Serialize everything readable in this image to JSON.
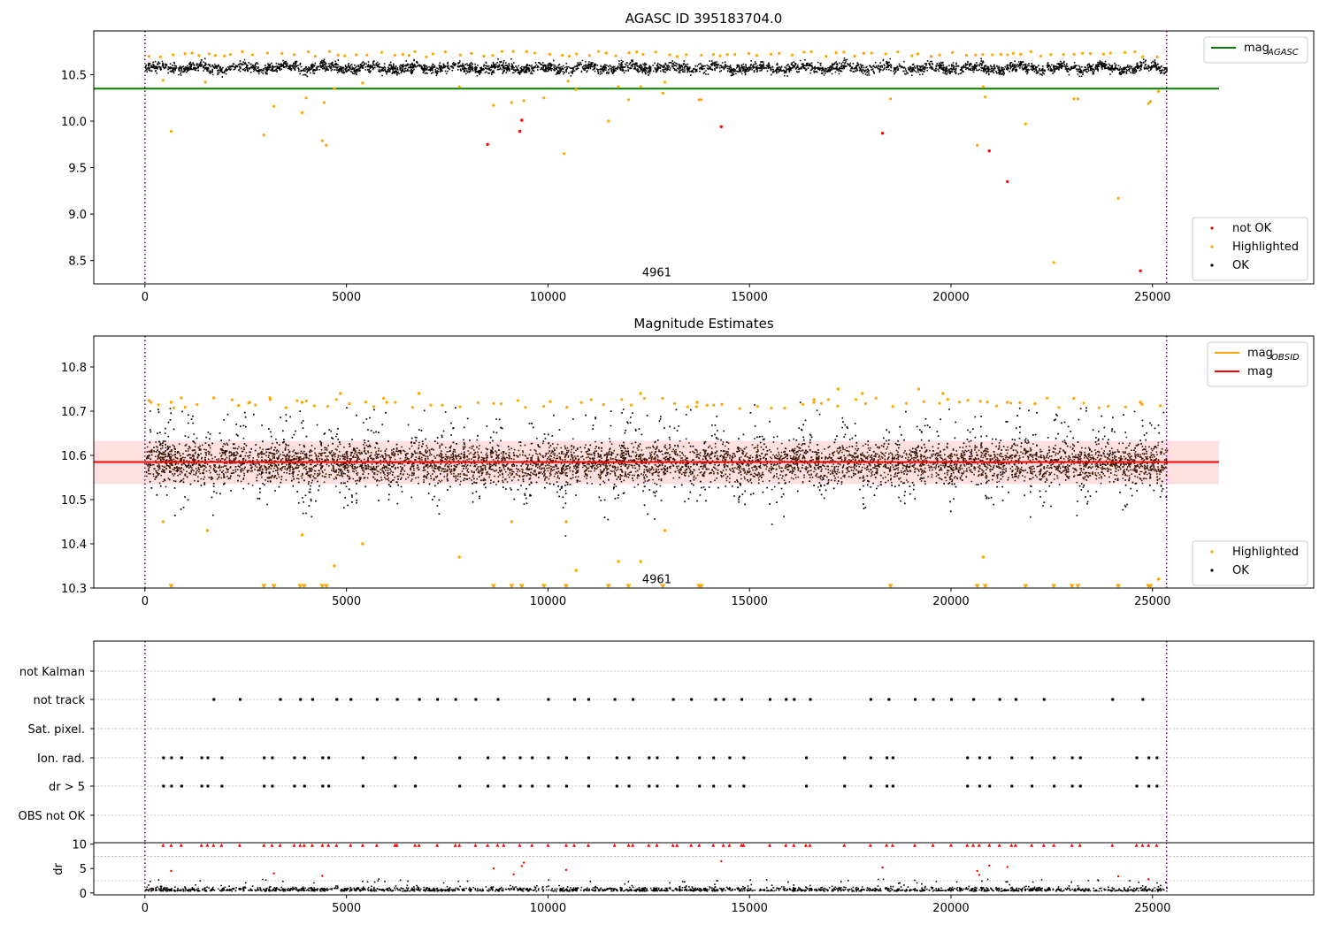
{
  "chart_data": [
    {
      "type": "scatter",
      "title": "AGASC ID 395183704.0",
      "xlabel": "",
      "ylabel": "",
      "xlim": [
        -1270,
        29000
      ],
      "ylim": [
        8.25,
        10.97
      ],
      "xticks": [
        0,
        5000,
        10000,
        15000,
        20000,
        25000
      ],
      "yticks": [
        8.5,
        9.0,
        9.5,
        10.0,
        10.5
      ],
      "vlines": [
        0,
        25350
      ],
      "annotation": {
        "text": "4961",
        "x": 12700,
        "y": 8.35
      },
      "hline": {
        "name": "mag",
        "subscript": "AGASC",
        "y": 10.35,
        "x_range": [
          -1270,
          26650
        ],
        "color": "#008000"
      },
      "ok_band": {
        "x_range": [
          0,
          25350
        ],
        "center": 10.58,
        "half_width": 0.06,
        "color": "#000000"
      },
      "series": [
        {
          "name": "not OK",
          "color": "#ff0000",
          "points": [
            [
              8500,
              9.75
            ],
            [
              9300,
              9.89
            ],
            [
              9350,
              10.01
            ],
            [
              14300,
              9.94
            ],
            [
              18300,
              9.87
            ],
            [
              20950,
              9.68
            ],
            [
              21400,
              9.35
            ],
            [
              24700,
              8.39
            ]
          ]
        },
        {
          "name": "Highlighted",
          "color": "#ffa500",
          "points": [
            [
              450,
              10.44
            ],
            [
              650,
              9.89
            ],
            [
              1500,
              10.42
            ],
            [
              2950,
              9.85
            ],
            [
              3200,
              10.16
            ],
            [
              3900,
              10.09
            ],
            [
              4000,
              10.25
            ],
            [
              4400,
              9.79
            ],
            [
              4450,
              10.2
            ],
            [
              4500,
              9.74
            ],
            [
              4700,
              10.35
            ],
            [
              5400,
              10.41
            ],
            [
              7800,
              10.37
            ],
            [
              8650,
              10.17
            ],
            [
              9100,
              10.2
            ],
            [
              9400,
              10.22
            ],
            [
              9900,
              10.25
            ],
            [
              10400,
              9.65
            ],
            [
              10500,
              10.43
            ],
            [
              10700,
              10.34
            ],
            [
              11500,
              10.0
            ],
            [
              11750,
              10.37
            ],
            [
              12000,
              10.23
            ],
            [
              12300,
              10.37
            ],
            [
              12850,
              10.3
            ],
            [
              12900,
              10.42
            ],
            [
              13750,
              10.23
            ],
            [
              13800,
              10.23
            ],
            [
              18500,
              10.24
            ],
            [
              20650,
              9.74
            ],
            [
              20800,
              10.37
            ],
            [
              20850,
              10.26
            ],
            [
              21850,
              9.97
            ],
            [
              22550,
              8.48
            ],
            [
              23050,
              10.24
            ],
            [
              23150,
              10.24
            ],
            [
              24150,
              9.17
            ],
            [
              24900,
              10.19
            ],
            [
              24950,
              10.21
            ],
            [
              25150,
              10.32
            ]
          ]
        },
        {
          "name": "OK",
          "color": "#000000",
          "points": []
        }
      ],
      "legend_lines": [
        {
          "name": "mag",
          "subscript": "AGASC",
          "color": "#008000"
        }
      ],
      "legend_points": [
        {
          "name": "not OK",
          "color": "#ff0000"
        },
        {
          "name": "Highlighted",
          "color": "#ffa500"
        },
        {
          "name": "OK",
          "color": "#000000"
        }
      ]
    },
    {
      "type": "scatter",
      "title": "Magnitude Estimates",
      "xlabel": "",
      "ylabel": "",
      "xlim": [
        -1270,
        29000
      ],
      "ylim": [
        10.3,
        10.87
      ],
      "xticks": [
        0,
        5000,
        10000,
        15000,
        20000,
        25000
      ],
      "yticks": [
        10.3,
        10.4,
        10.5,
        10.6,
        10.7,
        10.8
      ],
      "vlines": [
        0,
        25350
      ],
      "annotation": {
        "text": "4961",
        "x": 12700,
        "y": 10.315
      },
      "mag_line": {
        "name": "mag",
        "y": 10.585,
        "x_range": [
          -1270,
          26650
        ],
        "color": "#ff0000"
      },
      "mag_band": {
        "y_range": [
          10.535,
          10.633
        ],
        "x_range": [
          -1270,
          26650
        ],
        "color": "#ff0000"
      },
      "ok_band": {
        "x_range": [
          0,
          25350
        ],
        "center": 10.58,
        "half_width": 0.075,
        "color": "#000000"
      },
      "series": [
        {
          "name": "Highlighted",
          "color": "#ffa500",
          "points": [
            [
              450,
              10.45
            ],
            [
              1550,
              10.43
            ],
            [
              3900,
              10.42
            ],
            [
              4700,
              10.35
            ],
            [
              5400,
              10.4
            ],
            [
              7800,
              10.37
            ],
            [
              9100,
              10.45
            ],
            [
              10450,
              10.45
            ],
            [
              10700,
              10.34
            ],
            [
              11750,
              10.36
            ],
            [
              12300,
              10.36
            ],
            [
              12900,
              10.43
            ],
            [
              20800,
              10.37
            ],
            [
              25150,
              10.32
            ],
            [
              150,
              10.72
            ],
            [
              650,
              10.72
            ],
            [
              900,
              10.73
            ],
            [
              2600,
              10.72
            ],
            [
              3100,
              10.73
            ],
            [
              3900,
              10.72
            ],
            [
              4850,
              10.74
            ],
            [
              6000,
              10.72
            ],
            [
              6800,
              10.74
            ],
            [
              12300,
              10.74
            ],
            [
              13700,
              10.72
            ],
            [
              16600,
              10.72
            ],
            [
              17200,
              10.75
            ],
            [
              17800,
              10.74
            ],
            [
              19200,
              10.75
            ],
            [
              19800,
              10.74
            ],
            [
              21400,
              10.72
            ],
            [
              24700,
              10.72
            ]
          ]
        },
        {
          "name": "OK",
          "color": "#000000",
          "points": []
        }
      ],
      "offscale_markers": {
        "color": "#ffa500",
        "y": 10.303,
        "x": [
          650,
          2950,
          3200,
          3850,
          3950,
          4400,
          4500,
          8650,
          9100,
          9350,
          9900,
          10450,
          11500,
          12000,
          12850,
          13750,
          13800,
          18500,
          20650,
          20850,
          21850,
          22550,
          23000,
          23150,
          24150,
          24900,
          24950
        ]
      },
      "legend_lines": [
        {
          "name": "mag",
          "subscript": "OBSID",
          "color": "#ffa500"
        },
        {
          "name": "mag",
          "subscript": "",
          "color": "#ff0000"
        }
      ],
      "legend_points": [
        {
          "name": "Highlighted",
          "color": "#ffa500"
        },
        {
          "name": "OK",
          "color": "#000000"
        }
      ]
    },
    {
      "type": "scatter",
      "title": "",
      "xlim": [
        -1270,
        29000
      ],
      "vlines": [
        0,
        25350
      ],
      "categories": [
        "not Kalman",
        "not track",
        "Sat. pixel.",
        "Ion. rad.",
        "dr > 5",
        "OBS not OK"
      ],
      "flags": {
        "not track": [
          1700,
          2350,
          3350,
          3850,
          4150,
          4750,
          5100,
          5750,
          6250,
          6800,
          7250,
          7700,
          8200,
          8750,
          10000,
          10650,
          11000,
          11650,
          12100,
          13100,
          13550,
          14150,
          14350,
          14800,
          15500,
          15900,
          16100,
          16500,
          18000,
          18450,
          19100,
          19550,
          20000,
          20550,
          21200,
          21600,
          22300,
          24000,
          24750
        ],
        "Ion. rad.": [
          450,
          650,
          900,
          1400,
          1550,
          1900,
          2950,
          3150,
          3700,
          3950,
          4400,
          4550,
          5400,
          6200,
          6700,
          7800,
          8500,
          8900,
          9300,
          9600,
          10000,
          10450,
          11000,
          11700,
          12000,
          12500,
          12700,
          13200,
          13750,
          14100,
          14500,
          14850,
          16400,
          17350,
          18000,
          18400,
          18550,
          20400,
          20700,
          20950,
          21500,
          22000,
          22550,
          23000,
          23200,
          24600,
          24900,
          25100
        ],
        "dr > 5": [
          450,
          650,
          900,
          1400,
          1550,
          1900,
          2950,
          3150,
          3700,
          3950,
          4400,
          4550,
          5400,
          6200,
          6700,
          7800,
          8500,
          8900,
          9300,
          9600,
          10000,
          10450,
          11000,
          11700,
          12000,
          12500,
          12700,
          13200,
          13750,
          14100,
          14500,
          14850,
          16400,
          17350,
          18000,
          18400,
          18550,
          20400,
          20700,
          20950,
          21500,
          22000,
          22550,
          23000,
          23200,
          24600,
          24900,
          25100
        ]
      }
    },
    {
      "type": "scatter",
      "title": "",
      "xlabel": "",
      "ylabel": "dr",
      "xlim": [
        -1270,
        29000
      ],
      "ylim": [
        -0.4,
        10.3
      ],
      "xticks": [
        0,
        5000,
        10000,
        15000,
        20000,
        25000
      ],
      "yticks": [
        0,
        5,
        10
      ],
      "vlines": [
        0,
        25350
      ],
      "capped": {
        "y": 9.8,
        "color": "#ff0000",
        "x": [
          450,
          650,
          900,
          1400,
          1550,
          1700,
          1900,
          2350,
          2950,
          3150,
          3350,
          3700,
          3850,
          3950,
          4150,
          4400,
          4550,
          4750,
          5100,
          5400,
          5750,
          6200,
          6250,
          6700,
          6800,
          7250,
          7700,
          7800,
          8200,
          8500,
          8750,
          8900,
          9300,
          9600,
          10000,
          10450,
          10650,
          11000,
          11650,
          12000,
          12100,
          12500,
          12700,
          13100,
          13200,
          13550,
          13750,
          14100,
          14350,
          14500,
          14800,
          14850,
          15500,
          15900,
          16100,
          16400,
          16500,
          17350,
          18000,
          18400,
          18550,
          19100,
          19550,
          20000,
          20400,
          20550,
          20700,
          20950,
          21200,
          21500,
          21600,
          22000,
          22300,
          22550,
          23000,
          23200,
          24000,
          24600,
          24750,
          24900,
          25100
        ]
      },
      "red_points": [
        [
          650,
          4.5
        ],
        [
          3200,
          4.0
        ],
        [
          4400,
          3.5
        ],
        [
          8650,
          5.0
        ],
        [
          9150,
          3.8
        ],
        [
          9350,
          5.5
        ],
        [
          9400,
          6.2
        ],
        [
          10450,
          4.7
        ],
        [
          14300,
          6.5
        ],
        [
          18300,
          5.2
        ],
        [
          20650,
          4.5
        ],
        [
          20700,
          3.7
        ],
        [
          20950,
          5.6
        ],
        [
          21400,
          5.3
        ],
        [
          24150,
          3.4
        ],
        [
          24900,
          2.8
        ]
      ],
      "black_band": {
        "x_range": [
          0,
          25350
        ],
        "center": 0.7,
        "half_width": 0.9
      }
    }
  ]
}
